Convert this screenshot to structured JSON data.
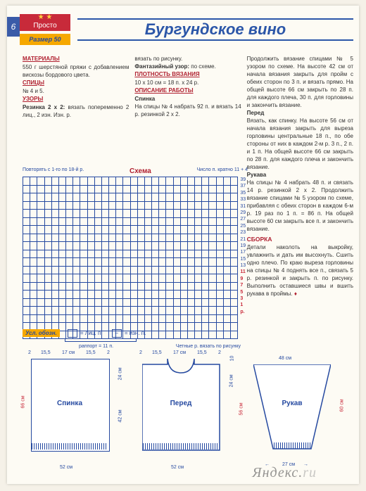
{
  "page_number": "6",
  "simple_label": "Просто",
  "stars": "★ ★",
  "size_label": "Размер 50",
  "title": "Бургундское вино",
  "col1": {
    "materials_h": "МАТЕРИАЛЫ",
    "materials": "550 г шерстяной пряжи с добавлением вискозы бордового цвета.",
    "needles_h": "СПИЦЫ",
    "needles": "№ 4 и 5.",
    "patterns_h": "УЗОРЫ",
    "rib_b": "Резинка 2 х 2:",
    "rib": " вязать попеременно 2 лиц., 2 изн. Изн. р."
  },
  "col2": {
    "line1": "вязать по рисунку.",
    "fantasy_b": "Фантазийный узор:",
    "fantasy": " по схеме.",
    "density_h": "ПЛОТНОСТЬ ВЯЗАНИЯ",
    "density": "10 х 10 см = 18 п. х 24 р.",
    "work_h": "ОПИСАНИЕ РАБОТЫ",
    "back_b": "Спинка",
    "back": "На спицы № 4 набрать 92 п. и вязать 14 р. резинкой 2 х 2."
  },
  "col3": {
    "p1": "Продолжить вязание спицами № 5 узором по схеме. На высоте 42 см от начала вязания закрыть для пройм с обеих сторон по 3 п. и вязать прямо. На общей высоте 66 см закрыть по 28 п. для каждого плеча, 30 п. для горловины и закончить вязание.",
    "front_b": "Перед",
    "p2": "Вязать, как спинку. На высоте 56 см от начала вязания закрыть для выреза горловины центральные 18 п., по обе стороны от них в каждом 2-м р. 3 п., 2 п. и 1 п. На общей высоте 66 см закрыть по 28 п. для каждого плеча и закончить вязание.",
    "sleeves_b": "Рукава",
    "p3": "На спицы № 4 набрать 48 п. и связать 14 р. резинкой 2 х 2. Продолжить вязание спицами № 5 узором по схеме, прибавляя с обеих сторон в каждом 6-м р. 19 раз по 1 п. = 86 п. На общей высоте 60 см закрыть все п. и закончить вязание.",
    "assembly_h": "СБОРКА",
    "p4": "Детали наколоть на выкройку, увлажнить и дать им высохнуть. Сшить одно плечо. По краю выреза горловины на спицы № 4 поднять все п., связать 5 р. резинкой и закрыть п. по рисунку. Выполнить оставшиеся швы и вшить рукава в проймы."
  },
  "schema": {
    "repeat_note": "Повторять с 1-го по 18-й р.",
    "title": "Схема",
    "count_note": "Число п. кратно 11 + 4",
    "rapport": "раппорт = 11 п.",
    "even_rows": "Четные р. вязать по рисунку",
    "rows": [
      "39",
      "37",
      "35",
      "33",
      "31",
      "29",
      "27",
      "25",
      "23",
      "21",
      "19",
      "17",
      "15",
      "13",
      "11",
      "9",
      "7",
      "5",
      "3",
      "1 р."
    ],
    "cols": 30
  },
  "legend": {
    "title": "Усл. обозн.",
    "sym1": "",
    "txt1": "= лиц. п.",
    "sym2": "–",
    "txt2": "= изн. п."
  },
  "pieces": {
    "back": {
      "name": "Спинка",
      "top_dims": [
        "2",
        "15,5",
        "17 см",
        "15,5",
        "2"
      ],
      "left_h": "66 см",
      "right_top": "24 см",
      "right_bot": "42 см",
      "bottom": "52 см"
    },
    "front": {
      "name": "Перед",
      "top_dims": [
        "2",
        "15,5",
        "17 см",
        "15,5",
        "2"
      ],
      "neck_h": "10",
      "right_top": "24 см",
      "right_bot": "56 см",
      "bottom": "52 см"
    },
    "sleeve": {
      "name": "Рукав",
      "top": "48 см",
      "right": "60 см",
      "bottom": "27 см"
    }
  },
  "watermark_1": "Яндекс.",
  "watermark_2": "ru"
}
